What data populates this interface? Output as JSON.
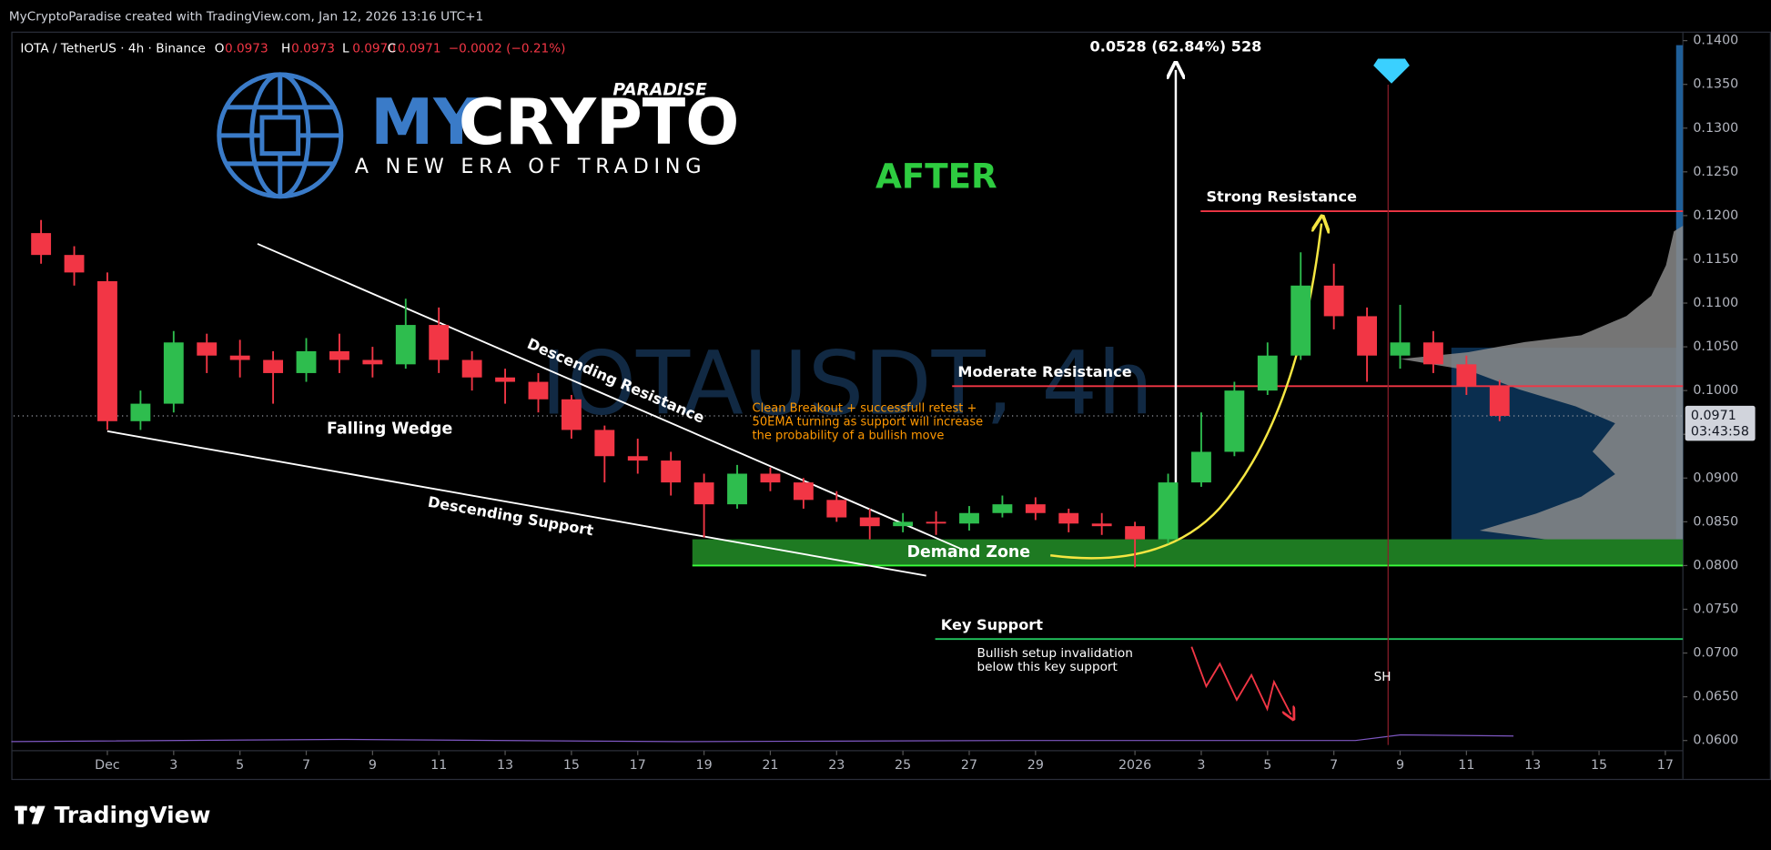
{
  "chart_data": {
    "type": "candlestick",
    "header": "MyCryptoParadise created with TradingView.com, Jan 12, 2026 13:16 UTC+1",
    "symbol": "IOTA / TetherUS · 4h · Binance",
    "ohlc_legend": {
      "names": [
        "O",
        "H",
        "L",
        "C"
      ],
      "values": [
        0.0973,
        0.0973,
        0.097,
        0.0971
      ],
      "value_labels": [
        "0.0973",
        "0.0973",
        "0.0970",
        "0.0971"
      ]
    },
    "change": "−0.0002 (−0.21%)",
    "watermark": "IOTAUSDT, 4h",
    "logo": {
      "top": "PARADISE",
      "my": "MY",
      "crypto": "CRYPTO",
      "tagline": "A NEW ERA OF TRADING"
    },
    "stage": "AFTER",
    "annotations": {
      "falling_wedge": "Falling Wedge",
      "descending_resistance": "Descending Resistance",
      "descending_support": "Descending Support",
      "note": [
        "Clean Breakout + successfull retest +",
        "50EMA turning as support will increase",
        "the probability of a bullish move"
      ],
      "invalidation": [
        "Bullish setup invalidation",
        "below this key support"
      ],
      "sh": "SH",
      "measure": "0.0528 (62.84%) 528"
    },
    "levels": [
      {
        "label": "Strong Resistance",
        "value": 0.1205,
        "color": "#f23645"
      },
      {
        "label": "Moderate Resistance",
        "value": 0.1005,
        "color": "#f23645"
      },
      {
        "label": "Key Support",
        "value": 0.0716,
        "color": "#22c55e"
      }
    ],
    "demand_zone": {
      "label": "Demand Zone",
      "low": 0.08,
      "high": 0.083,
      "color": "#1e7a22"
    },
    "last_price": 0.0971,
    "countdown": "03:43:58",
    "up_color": "#2ebd4e",
    "down_color": "#f23645",
    "x": [
      -2,
      -1,
      0,
      1,
      2,
      3,
      4,
      5,
      6,
      7,
      8,
      9,
      10,
      11,
      12,
      13,
      14,
      15,
      16,
      17,
      18,
      19,
      20,
      21,
      22,
      23,
      24,
      25,
      26,
      27,
      28,
      29,
      30,
      31,
      32,
      33,
      34,
      35,
      36,
      37,
      38,
      39,
      40,
      41,
      42
    ],
    "open": [
      0.118,
      0.1155,
      0.1125,
      0.0965,
      0.0985,
      0.1055,
      0.104,
      0.1035,
      0.102,
      0.1045,
      0.1035,
      0.103,
      0.1075,
      0.1035,
      0.1015,
      0.101,
      0.099,
      0.0955,
      0.0925,
      0.092,
      0.0895,
      0.087,
      0.0905,
      0.0895,
      0.0875,
      0.0855,
      0.0845,
      0.085,
      0.0848,
      0.086,
      0.087,
      0.086,
      0.0848,
      0.0845,
      0.083,
      0.0895,
      0.093,
      0.1,
      0.104,
      0.112,
      0.1085,
      0.104,
      0.1055,
      0.103,
      0.1005
    ],
    "high": [
      0.1195,
      0.1165,
      0.1135,
      0.1,
      0.1068,
      0.1065,
      0.1058,
      0.1045,
      0.106,
      0.1065,
      0.105,
      0.1105,
      0.1095,
      0.1045,
      0.1025,
      0.102,
      0.0995,
      0.096,
      0.0945,
      0.093,
      0.0905,
      0.0915,
      0.0912,
      0.09,
      0.0885,
      0.0865,
      0.086,
      0.0862,
      0.0868,
      0.088,
      0.0878,
      0.0865,
      0.086,
      0.085,
      0.0905,
      0.0975,
      0.101,
      0.1055,
      0.1158,
      0.1145,
      0.1095,
      0.1098,
      0.1068,
      0.104,
      0.1012
    ],
    "low": [
      0.1145,
      0.112,
      0.0955,
      0.0955,
      0.0975,
      0.102,
      0.1015,
      0.0985,
      0.101,
      0.102,
      0.1015,
      0.1025,
      0.102,
      0.1,
      0.0985,
      0.0975,
      0.0945,
      0.0895,
      0.0905,
      0.088,
      0.0832,
      0.0865,
      0.0885,
      0.0865,
      0.085,
      0.083,
      0.0838,
      0.0835,
      0.084,
      0.0855,
      0.0852,
      0.0838,
      0.0835,
      0.0798,
      0.0825,
      0.089,
      0.0925,
      0.0995,
      0.1035,
      0.107,
      0.101,
      0.1025,
      0.102,
      0.0995,
      0.0965
    ],
    "close": [
      0.1155,
      0.1135,
      0.0965,
      0.0985,
      0.1055,
      0.104,
      0.1035,
      0.102,
      0.1045,
      0.1035,
      0.103,
      0.1075,
      0.1035,
      0.1015,
      0.101,
      0.099,
      0.0955,
      0.0925,
      0.092,
      0.0895,
      0.087,
      0.0905,
      0.0895,
      0.0875,
      0.0855,
      0.0845,
      0.085,
      0.0848,
      0.086,
      0.087,
      0.086,
      0.0848,
      0.0845,
      0.083,
      0.0895,
      0.093,
      0.1,
      0.104,
      0.112,
      0.1085,
      0.104,
      0.1055,
      0.103,
      0.1005,
      0.0971
    ],
    "xlim": [
      -2.83,
      47.53
    ],
    "ylim": [
      0.05884,
      0.14103
    ],
    "xticks": [
      {
        "value": 0,
        "label": "Dec"
      },
      {
        "value": 2,
        "label": "3"
      },
      {
        "value": 4,
        "label": "5"
      },
      {
        "value": 6,
        "label": "7"
      },
      {
        "value": 8,
        "label": "9"
      },
      {
        "value": 10,
        "label": "11"
      },
      {
        "value": 12,
        "label": "13"
      },
      {
        "value": 14,
        "label": "15"
      },
      {
        "value": 16,
        "label": "17"
      },
      {
        "value": 18,
        "label": "19"
      },
      {
        "value": 20,
        "label": "21"
      },
      {
        "value": 22,
        "label": "23"
      },
      {
        "value": 24,
        "label": "25"
      },
      {
        "value": 26,
        "label": "27"
      },
      {
        "value": 28,
        "label": "29"
      },
      {
        "value": 31,
        "label": "2026"
      },
      {
        "value": 33,
        "label": "3"
      },
      {
        "value": 35,
        "label": "5"
      },
      {
        "value": 37,
        "label": "7"
      },
      {
        "value": 39,
        "label": "9"
      },
      {
        "value": 41,
        "label": "11"
      },
      {
        "value": 43,
        "label": "13"
      },
      {
        "value": 45,
        "label": "15"
      },
      {
        "value": 47,
        "label": "17"
      }
    ],
    "yticks": [
      {
        "value": 0.06,
        "label": "0.0600"
      },
      {
        "value": 0.065,
        "label": "0.0650"
      },
      {
        "value": 0.07,
        "label": "0.0700"
      },
      {
        "value": 0.075,
        "label": "0.0750"
      },
      {
        "value": 0.08,
        "label": "0.0800"
      },
      {
        "value": 0.085,
        "label": "0.0850"
      },
      {
        "value": 0.09,
        "label": "0.0900"
      },
      {
        "value": 0.095,
        "label": "0.0950"
      },
      {
        "value": 0.1,
        "label": "0.1000"
      },
      {
        "value": 0.105,
        "label": "0.1050"
      },
      {
        "value": 0.11,
        "label": "0.1100"
      },
      {
        "value": 0.115,
        "label": "0.1150"
      },
      {
        "value": 0.12,
        "label": "0.1200"
      },
      {
        "value": 0.125,
        "label": "0.1250"
      },
      {
        "value": 0.13,
        "label": "0.1300"
      },
      {
        "value": 0.135,
        "label": "0.1350"
      },
      {
        "value": 0.14,
        "label": "0.1400"
      }
    ],
    "brand": "TradingView"
  }
}
